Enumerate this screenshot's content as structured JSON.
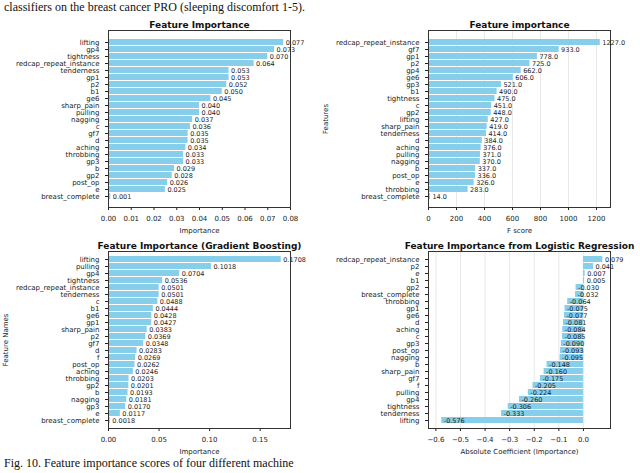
{
  "header": "classifiers on the breast cancer PRO (sleeping discomfort 1-5).",
  "caption": "Fig. 10. Feature importance scores of four different machine",
  "chart_data": [
    {
      "type": "bar",
      "orientation": "horizontal",
      "title": "Feature Importance",
      "xlabel": "Importance",
      "categories": [
        "lifting",
        "gp4",
        "tightness",
        "redcap_repeat_instance",
        "tenderness",
        "gp1",
        "p2",
        "b1",
        "ge6",
        "sharp_pain",
        "pulling",
        "nagging",
        "c",
        "gf7",
        "d",
        "aching",
        "throbbing",
        "gp3",
        "b",
        "gp2",
        "post_op",
        "e",
        "breast_complete"
      ],
      "values": [
        0.077,
        0.073,
        0.07,
        0.064,
        0.053,
        0.053,
        0.052,
        0.05,
        0.045,
        0.04,
        0.04,
        0.037,
        0.036,
        0.035,
        0.035,
        0.034,
        0.033,
        0.033,
        0.029,
        0.028,
        0.026,
        0.025,
        0.001
      ],
      "value_labels": [
        "0.077",
        "0.073",
        "0.070",
        "0.064",
        "0.053",
        "0.053",
        "0.052",
        "0.050",
        "0.045",
        "0.040",
        "0.040",
        "0.037",
        "0.036",
        "0.035",
        "0.035",
        "0.034",
        "0.033",
        "0.033",
        "0.029",
        "0.028",
        "0.026",
        "0.025",
        "0.001"
      ],
      "data_labels": true,
      "color": "#87ceeb",
      "grid": false,
      "xlim": [
        0,
        0.08
      ],
      "xticks": [
        {
          "value": 0,
          "label": "0.00"
        },
        {
          "value": 0.01,
          "label": "0.01"
        },
        {
          "value": 0.02,
          "label": "0.02"
        },
        {
          "value": 0.03,
          "label": "0.03"
        },
        {
          "value": 0.04,
          "label": "0.04"
        },
        {
          "value": 0.05,
          "label": "0.05"
        },
        {
          "value": 0.06,
          "label": "0.06"
        },
        {
          "value": 0.07,
          "label": "0.07"
        },
        {
          "value": 0.08,
          "label": "0.08"
        }
      ]
    },
    {
      "type": "bar",
      "orientation": "horizontal",
      "title": "Feature importance",
      "xlabel": "F score",
      "ylabel": "Features",
      "categories": [
        "redcap_repeat_instance",
        "gf7",
        "gp1",
        "p2",
        "gp4",
        "ge6",
        "gp3",
        "b1",
        "tightness",
        "c",
        "gp2",
        "lifting",
        "sharp_pain",
        "tenderness",
        "d",
        "aching",
        "pulling",
        "nagging",
        "b",
        "post_op",
        "e",
        "throbbing",
        "breast_complete"
      ],
      "values": [
        1227,
        933,
        778,
        725,
        662,
        606,
        521,
        490,
        475,
        451,
        448,
        427,
        419,
        414,
        384,
        376,
        371,
        370,
        337,
        336,
        326,
        283,
        14
      ],
      "value_labels": [
        "1227.0",
        "933.0",
        "778.0",
        "725.0",
        "662.0",
        "606.0",
        "521.0",
        "490.0",
        "475.0",
        "451.0",
        "448.0",
        "427.0",
        "419.0",
        "414.0",
        "384.0",
        "376.0",
        "371.0",
        "370.0",
        "337.0",
        "336.0",
        "326.0",
        "283.0",
        "14.0"
      ],
      "data_labels": true,
      "color": "#87ceeb",
      "grid": true,
      "xlim": [
        0,
        1300
      ],
      "xticks": [
        0,
        200,
        400,
        600,
        800,
        1000,
        1200
      ]
    },
    {
      "type": "bar",
      "orientation": "horizontal",
      "title": "Feature Importance (Gradient Boosting)",
      "xlabel": "Importance",
      "ylabel": "Feature Names",
      "categories": [
        "lifting",
        "pulling",
        "gp4",
        "tightness",
        "redcap_repeat_instance",
        "tenderness",
        "c",
        "b1",
        "ge6",
        "gp1",
        "sharp_pain",
        "p2",
        "gf7",
        "d",
        "f",
        "post_op",
        "aching",
        "throbbing",
        "gp2",
        "b",
        "nagging",
        "gp3",
        "e",
        "breast_complete"
      ],
      "values": [
        0.1708,
        0.1018,
        0.0704,
        0.0536,
        0.0501,
        0.0501,
        0.0488,
        0.0444,
        0.0428,
        0.0427,
        0.0383,
        0.0369,
        0.0348,
        0.0283,
        0.0269,
        0.0262,
        0.0246,
        0.0203,
        0.0201,
        0.0193,
        0.0181,
        0.017,
        0.0117,
        0.0018
      ],
      "value_labels": [
        "0.1708",
        "0.1018",
        "0.0704",
        "0.0536",
        "0.0501",
        "0.0501",
        "0.0488",
        "0.0444",
        "0.0428",
        "0.0427",
        "0.0383",
        "0.0369",
        "0.0348",
        "0.0283",
        "0.0269",
        "0.0262",
        "0.0246",
        "0.0203",
        "0.0201",
        "0.0193",
        "0.0181",
        "0.0170",
        "0.0117",
        "0.0018"
      ],
      "data_labels": true,
      "color": "#87ceeb",
      "grid": false,
      "xlim": [
        0,
        0.18
      ],
      "xticks": [
        {
          "value": 0,
          "label": "0.00"
        },
        {
          "value": 0.05,
          "label": "0.05"
        },
        {
          "value": 0.1,
          "label": "0.10"
        },
        {
          "value": 0.15,
          "label": "0.15"
        }
      ]
    },
    {
      "type": "bar",
      "orientation": "horizontal",
      "title": "Feature Importance from Logistic Regression",
      "xlabel": "Absolute Coefficient (Importance)",
      "categories": [
        "redcap_repeat_instance",
        "p2",
        "e",
        "b1",
        "gp2",
        "breast_complete",
        "throbbing",
        "gp1",
        "ge6",
        "d",
        "aching",
        "c",
        "gp3",
        "post_op",
        "nagging",
        "b",
        "sharp_pain",
        "gf7",
        "f",
        "pulling",
        "gp4",
        "tightness",
        "tenderness",
        "lifting"
      ],
      "values": [
        0.079,
        0.041,
        0.007,
        0.005,
        -0.03,
        -0.032,
        -0.064,
        -0.075,
        -0.077,
        -0.081,
        -0.084,
        -0.085,
        -0.09,
        -0.093,
        -0.095,
        -0.148,
        -0.16,
        -0.175,
        -0.205,
        -0.224,
        -0.26,
        -0.306,
        -0.333,
        -0.576
      ],
      "value_labels": [
        "0.079",
        "0.041",
        "0.007",
        "0.005",
        "-0.030",
        "-0.032",
        "-0.064",
        "-0.075",
        "-0.077",
        "-0.081",
        "-0.084",
        "-0.085",
        "-0.090",
        "-0.093",
        "-0.095",
        "-0.148",
        "-0.160",
        "-0.175",
        "-0.205",
        "-0.224",
        "-0.260",
        "-0.306",
        "-0.333",
        "-0.576"
      ],
      "data_labels": true,
      "color": "#87ceeb",
      "grid": true,
      "xlim": [
        -0.63,
        0.11
      ],
      "xticks": [
        {
          "value": -0.6,
          "label": "−0.6"
        },
        {
          "value": -0.5,
          "label": "−0.5"
        },
        {
          "value": -0.4,
          "label": "−0.4"
        },
        {
          "value": -0.3,
          "label": "−0.3"
        },
        {
          "value": -0.2,
          "label": "−0.2"
        },
        {
          "value": -0.1,
          "label": "−0.1"
        },
        {
          "value": 0,
          "label": "0.0"
        }
      ]
    }
  ]
}
